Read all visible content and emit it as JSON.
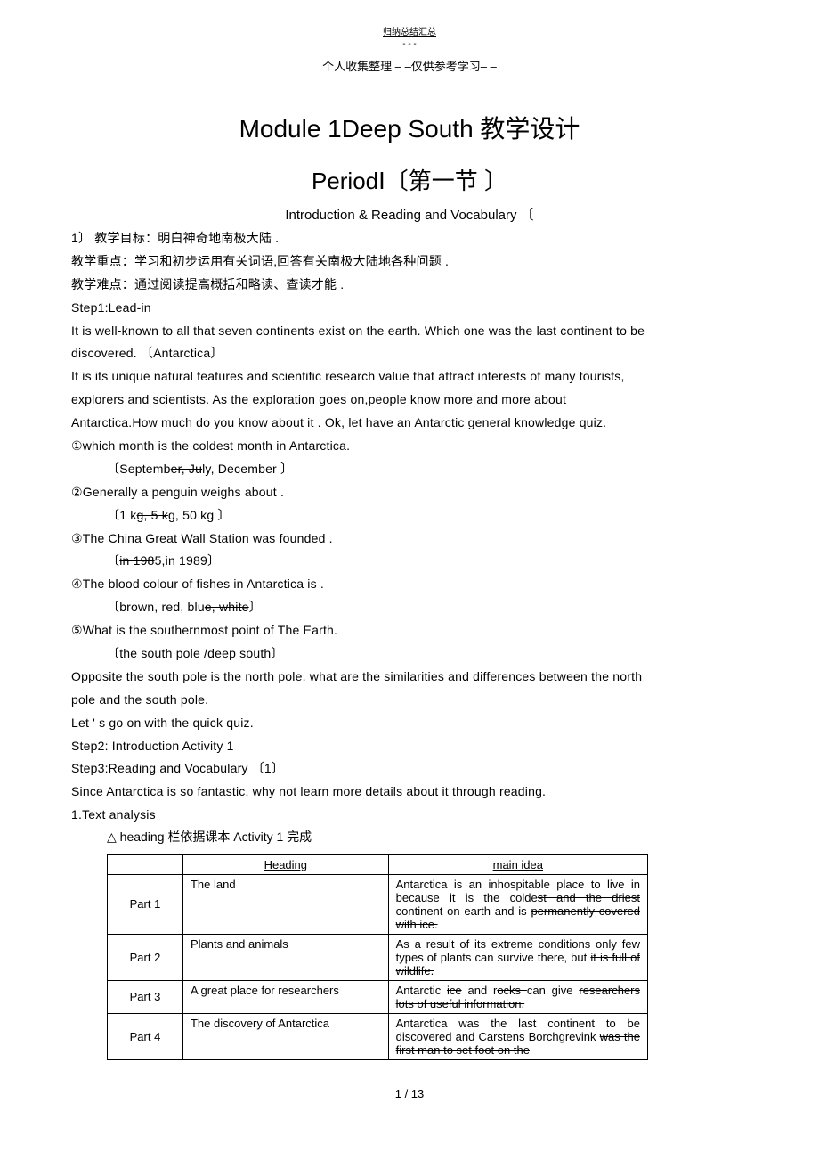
{
  "top_note_line1": "归纳总结汇总",
  "top_note_line2": "- - -",
  "header_note": "个人收集整理 – –仅供参考学习– –",
  "title": "Module 1Deep South 教学设计",
  "period_title": "PeriodⅠ〔第一节 〕",
  "subtitle": "Introduction & Reading and Vocabulary 〔",
  "lines": {
    "l1": "1〕 教学目标：明白神奇地南极大陆        .",
    "l2": "教学重点：学习和初步运用有关词语,回答有关南极大陆地各种问题                .",
    "l3": "教学难点：通过阅读提高概括和略读、查读才能         .",
    "l4": "Step1:Lead-in",
    "l5": "It is well-known to all that seven continents exist on the earth. Which one was the last continent to be",
    "l6": "discovered. 〔Antarctica〕",
    "l7": "It is its unique natural features and scientific research value that attract interests of many tourists,",
    "l8": "explorers and scientists. As the exploration goes on,people know more and more about",
    "l9": "Antarctica.How much do you know about it    . Ok, let     have an Antarctic general knowledge quiz.",
    "l10": "①which month is the coldest month in Antarctica.",
    "l12": "②Generally a penguin weighs about .",
    "l14": "③The China Great Wall Station was founded .",
    "l16": "④The blood colour of fishes in Antarctica is .",
    "l18": "⑤What is the southernmost point of The Earth.",
    "l19": "〔the south pole /deep south〕",
    "l20": "Opposite the south pole is the north pole. what are the similarities and differences between the north",
    "l21": "pole and the south pole.",
    "l22": "Let '   s go on with the quick quiz.",
    "l23": "Step2: Introduction Activity 1",
    "l24": "Step3:Reading and Vocabulary 〔1〕",
    "l25": "Since Antarctica is so fantastic, why not learn more details about it through reading.",
    "l26": "1.Text analysis"
  },
  "choice1": {
    "a": "〔Septemb",
    "b": "er, Ju",
    "c": "ly, December 〕"
  },
  "choice2": {
    "a": "〔1 k",
    "b": "g, 5 k",
    "c": "g, 50 kg 〕"
  },
  "choice3": {
    "a": "〔",
    "b": "in 198",
    "c": "5,in 1989〕"
  },
  "choice4": {
    "a": "〔brown, red, blu",
    "b": "e, white",
    "c": "〕"
  },
  "table_note": "     △ heading 栏依据课本    Activity 1 完成",
  "table": {
    "headers": {
      "h1": "",
      "h2": "Heading",
      "h3": "main idea"
    },
    "rows": [
      {
        "p": "Part 1",
        "h": "The land",
        "m_pre": "Antarctica is an inhospitable place to live in because it is the colde",
        "m_s1": "st and the driest",
        "m_mid": "   continent   on   earth    and   is ",
        "m_s2": "permanently covered with ice."
      },
      {
        "p": "Part 2",
        "h": "Plants and animals",
        "m_pre": "As a result of its ",
        "m_s1": "extreme conditions",
        "m_mid": " only few types of plants can survive there, but ",
        "m_s2": "it is full of wildlife."
      },
      {
        "p": "Part 3",
        "h": "A great place for researchers",
        "m_pre": "Antarctic    ",
        "m_s1": "ice",
        "m_mid": "   and r",
        "m_s1b": "ocks       ",
        "m_mid2": "can give ",
        "m_s2": "researchers lots of useful information."
      },
      {
        "p": "Part 4",
        "h": "The discovery of Antarctica",
        "m_pre": "Antarctica was the last continent to be discovered and Carstens Borchgrevink ",
        "m_s2": "was the first man to set foot on the"
      }
    ]
  },
  "footer": "1 / 13"
}
